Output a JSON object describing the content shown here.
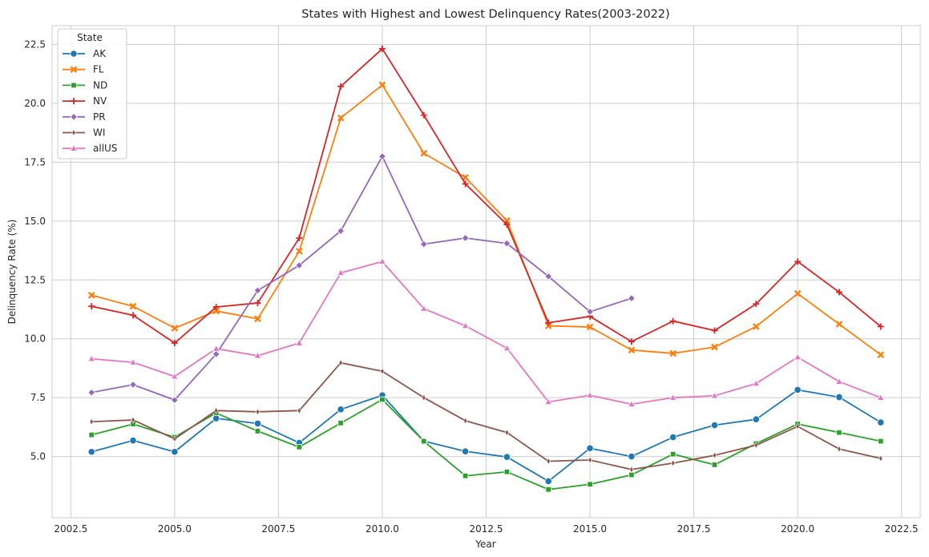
{
  "chart_data": {
    "type": "line",
    "title": "States with Highest and Lowest Delinquency Rates(2003-2022)",
    "xlabel": "Year",
    "ylabel": "Delinquency Rate (%)",
    "xlim": [
      2002.05,
      2022.95
    ],
    "ylim": [
      2.4,
      23.3
    ],
    "xticks": [
      "2002.5",
      "2005.0",
      "2007.5",
      "2010.0",
      "2012.5",
      "2015.0",
      "2017.5",
      "2020.0",
      "2022.5"
    ],
    "xtick_values": [
      2002.5,
      2005.0,
      2007.5,
      2010.0,
      2012.5,
      2015.0,
      2017.5,
      2020.0,
      2022.5
    ],
    "yticks": [
      "5.0",
      "7.5",
      "10.0",
      "12.5",
      "15.0",
      "17.5",
      "20.0",
      "22.5"
    ],
    "ytick_values": [
      5.0,
      7.5,
      10.0,
      12.5,
      15.0,
      17.5,
      20.0,
      22.5
    ],
    "grid": true,
    "legend": {
      "title": "State",
      "placement": "top-left"
    },
    "x": [
      2003,
      2004,
      2005,
      2006,
      2007,
      2008,
      2009,
      2010,
      2011,
      2012,
      2013,
      2014,
      2015,
      2016,
      2017,
      2018,
      2019,
      2020,
      2021,
      2022
    ],
    "series": [
      {
        "name": "AK",
        "color": "#1f77b4",
        "marker": "circle",
        "values": [
          5.2,
          5.68,
          5.2,
          6.62,
          6.4,
          5.58,
          7.0,
          7.6,
          5.65,
          5.22,
          4.98,
          3.95,
          5.35,
          5.0,
          5.82,
          6.33,
          6.58,
          7.83,
          7.52,
          6.45
        ]
      },
      {
        "name": "FL",
        "color": "#ff7f0e",
        "marker": "x",
        "values": [
          11.85,
          11.38,
          10.45,
          11.18,
          10.85,
          13.72,
          19.38,
          20.78,
          17.88,
          16.85,
          15.02,
          10.55,
          10.5,
          9.52,
          9.38,
          9.65,
          10.52,
          11.92,
          10.62,
          9.32
        ]
      },
      {
        "name": "ND",
        "color": "#2ca02c",
        "marker": "square",
        "values": [
          5.92,
          6.38,
          5.82,
          6.85,
          6.08,
          5.4,
          6.42,
          7.42,
          5.65,
          4.18,
          4.35,
          3.6,
          3.82,
          4.22,
          5.1,
          4.65,
          5.55,
          6.38,
          6.02,
          5.65
        ]
      },
      {
        "name": "NV",
        "color": "#d62728",
        "marker": "plus",
        "values": [
          11.38,
          11.0,
          9.82,
          11.35,
          11.52,
          14.28,
          20.72,
          22.32,
          19.5,
          16.58,
          14.85,
          10.68,
          10.95,
          9.88,
          10.75,
          10.35,
          11.48,
          13.28,
          11.98,
          10.52
        ]
      },
      {
        "name": "PR",
        "color": "#9467bd",
        "marker": "diamond",
        "values": [
          7.72,
          8.05,
          7.4,
          9.35,
          12.05,
          13.12,
          14.58,
          17.75,
          14.02,
          14.28,
          14.05,
          12.65,
          11.15,
          11.72,
          null,
          null,
          null,
          null,
          null,
          null
        ]
      },
      {
        "name": "WI",
        "color": "#8c564b",
        "marker": "thin_diamond",
        "values": [
          6.48,
          6.55,
          5.75,
          6.95,
          6.9,
          6.95,
          8.98,
          8.62,
          7.5,
          6.52,
          6.02,
          4.8,
          4.85,
          4.45,
          4.72,
          5.05,
          5.48,
          6.28,
          5.32,
          4.92
        ]
      },
      {
        "name": "allUS",
        "color": "#e377c2",
        "marker": "triangle",
        "values": [
          9.15,
          9.0,
          8.4,
          9.58,
          9.28,
          9.82,
          12.8,
          13.28,
          11.28,
          10.55,
          9.6,
          7.32,
          7.6,
          7.22,
          7.5,
          7.58,
          8.1,
          9.22,
          8.18,
          7.5
        ]
      }
    ]
  }
}
